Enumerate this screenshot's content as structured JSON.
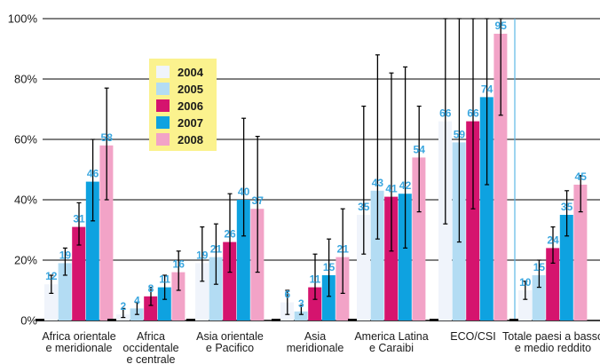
{
  "chart_data": {
    "type": "bar",
    "ylim": [
      0,
      100
    ],
    "y_ticks": [
      "0%",
      "20%",
      "40%",
      "60%",
      "80%",
      "100%"
    ],
    "grid": true,
    "legend_position": "top-left (boxed, yellow background)",
    "categories": [
      "Africa orientale\ne meridionale",
      "Africa\noccidentale\ne centrale",
      "Asia orientale\ne Pacifico",
      "Asia\nmeridionale",
      "America Latina\ne Caraibi",
      "ECO/CSI",
      "Totale paesi a basso\ne medio reddito"
    ],
    "series": [
      {
        "name": "2004",
        "color": "#f0f4fb",
        "values": [
          12,
          2,
          19,
          6,
          35,
          66,
          10
        ],
        "error_low": [
          9,
          1,
          13,
          2,
          22,
          32,
          7
        ],
        "error_high": [
          15,
          4,
          31,
          10,
          71,
          100,
          13
        ]
      },
      {
        "name": "2005",
        "color": "#b3dcf3",
        "values": [
          19,
          4,
          21,
          3,
          43,
          59,
          15
        ],
        "error_low": [
          15,
          2,
          12,
          2,
          27,
          26,
          11
        ],
        "error_high": [
          24,
          6,
          32,
          5,
          88,
          100,
          20
        ]
      },
      {
        "name": "2006",
        "color": "#d5146e",
        "values": [
          31,
          8,
          26,
          11,
          41,
          66,
          24
        ],
        "error_low": [
          25,
          5,
          16,
          7,
          23,
          37,
          19
        ],
        "error_high": [
          39,
          11,
          42,
          22,
          82,
          100,
          31
        ]
      },
      {
        "name": "2007",
        "color": "#0ea2e0",
        "values": [
          46,
          11,
          40,
          15,
          42,
          74,
          35
        ],
        "error_low": [
          33,
          7,
          28,
          8,
          24,
          45,
          28
        ],
        "error_high": [
          60,
          15,
          67,
          27,
          84,
          100,
          43
        ]
      },
      {
        "name": "2008",
        "color": "#f2a3c7",
        "values": [
          58,
          16,
          37,
          21,
          54,
          95,
          45
        ],
        "error_low": [
          40,
          10,
          16,
          9,
          36,
          68,
          36
        ],
        "error_high": [
          77,
          23,
          61,
          37,
          71,
          100,
          48
        ]
      }
    ],
    "group_baseline_markers": true,
    "colors": {
      "grid": "#000000",
      "separator": "#5eb7e6",
      "legend_bg": "#fbf28e",
      "value_label": "#3aa6df",
      "error_bar": "#000000"
    }
  }
}
